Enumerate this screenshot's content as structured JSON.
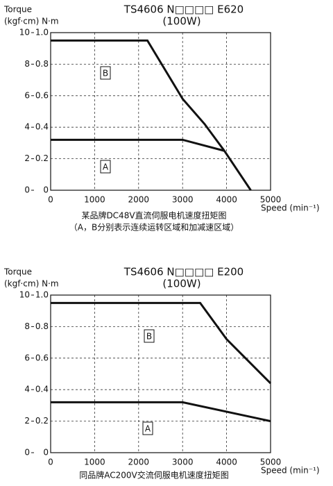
{
  "chart_data": [
    {
      "type": "line",
      "title": "TS4606 N□□□□ E620",
      "subtitle": "(100W)",
      "ylabel": "Torque",
      "ylabel_units": "(kgf·cm) N·m",
      "xlabel": "Speed (min⁻¹)",
      "captions": [
        "某品牌DC48V直流伺服电机速度扭矩图",
        "（A，B分别表示连续运转区域和加减速区域）"
      ],
      "xlim": [
        0,
        5000
      ],
      "xticks": [
        0,
        1000,
        2000,
        3000,
        4000,
        5000
      ],
      "ylim": [
        0,
        1
      ],
      "yticks": [
        0,
        0.2,
        0.4,
        0.6,
        0.8,
        {
          "value": 1,
          "label": "1.0"
        }
      ],
      "y2lim": [
        0,
        10
      ],
      "y2ticks": [
        0,
        2,
        4,
        6,
        8,
        10
      ],
      "grid": true,
      "series": [
        {
          "name": "A",
          "color": "#111111",
          "x": [
            0,
            3000,
            3950
          ],
          "values": [
            0.32,
            0.32,
            0.25
          ]
        },
        {
          "name": "B",
          "color": "#111111",
          "x": [
            0,
            2200,
            3000,
            3500,
            3950,
            4550
          ],
          "values": [
            0.95,
            0.95,
            0.58,
            0.42,
            0.25,
            0
          ]
        }
      ]
    },
    {
      "type": "line",
      "title": "TS4606 N□□□□ E200",
      "subtitle": "(100W)",
      "ylabel": "Torque",
      "ylabel_units": "(kgf·cm) N·m",
      "xlabel": "Speed (min⁻¹)",
      "captions": [
        "同品牌AC200V交流伺服电机速度扭矩图"
      ],
      "xlim": [
        0,
        5000
      ],
      "xticks": [
        0,
        1000,
        2000,
        3000,
        4000,
        5000
      ],
      "ylim": [
        0,
        1
      ],
      "yticks": [
        0,
        0.2,
        0.4,
        0.6,
        0.8,
        {
          "value": 1,
          "label": "1.0"
        }
      ],
      "y2lim": [
        0,
        10
      ],
      "y2ticks": [
        0,
        2,
        4,
        6,
        8,
        10
      ],
      "grid": true,
      "series": [
        {
          "name": "A",
          "color": "#111111",
          "x": [
            0,
            3000,
            5000
          ],
          "values": [
            0.32,
            0.32,
            0.2
          ]
        },
        {
          "name": "B",
          "color": "#111111",
          "x": [
            0,
            3400,
            4000,
            5000
          ],
          "values": [
            0.95,
            0.95,
            0.72,
            0.44
          ]
        }
      ]
    }
  ]
}
